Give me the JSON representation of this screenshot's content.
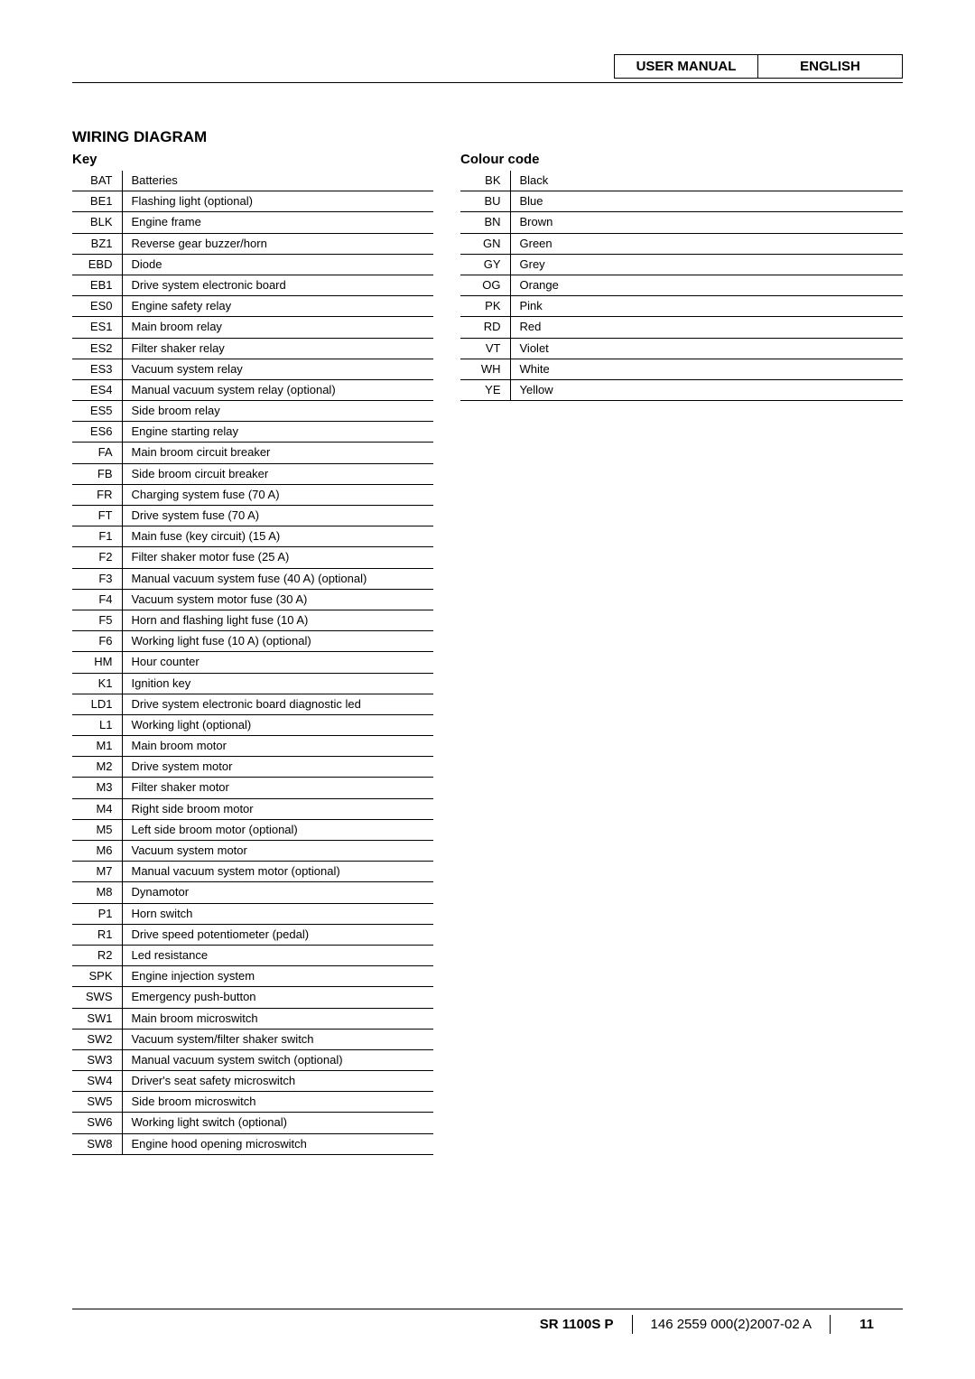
{
  "header": {
    "title": "USER MANUAL",
    "lang": "ENGLISH"
  },
  "section_title": "WIRING DIAGRAM",
  "key_title": "Key",
  "colour_title": "Colour code",
  "key_rows": [
    {
      "code": "BAT",
      "desc": "Batteries"
    },
    {
      "code": "BE1",
      "desc": "Flashing light (optional)"
    },
    {
      "code": "BLK",
      "desc": "Engine frame"
    },
    {
      "code": "BZ1",
      "desc": "Reverse gear buzzer/horn"
    },
    {
      "code": "EBD",
      "desc": "Diode"
    },
    {
      "code": "EB1",
      "desc": "Drive system electronic board"
    },
    {
      "code": "ES0",
      "desc": "Engine safety relay"
    },
    {
      "code": "ES1",
      "desc": "Main broom relay"
    },
    {
      "code": "ES2",
      "desc": "Filter shaker relay"
    },
    {
      "code": "ES3",
      "desc": "Vacuum system relay"
    },
    {
      "code": "ES4",
      "desc": "Manual vacuum system relay (optional)"
    },
    {
      "code": "ES5",
      "desc": "Side broom relay"
    },
    {
      "code": "ES6",
      "desc": "Engine starting relay"
    },
    {
      "code": "FA",
      "desc": "Main broom circuit breaker"
    },
    {
      "code": "FB",
      "desc": "Side broom circuit breaker"
    },
    {
      "code": "FR",
      "desc": "Charging system fuse (70 A)"
    },
    {
      "code": "FT",
      "desc": "Drive system fuse (70 A)"
    },
    {
      "code": "F1",
      "desc": "Main fuse (key circuit) (15 A)"
    },
    {
      "code": "F2",
      "desc": "Filter shaker motor fuse (25 A)"
    },
    {
      "code": "F3",
      "desc": "Manual vacuum system fuse (40 A) (optional)"
    },
    {
      "code": "F4",
      "desc": "Vacuum system motor fuse (30 A)"
    },
    {
      "code": "F5",
      "desc": "Horn and flashing light fuse (10 A)"
    },
    {
      "code": "F6",
      "desc": "Working light fuse (10 A) (optional)"
    },
    {
      "code": "HM",
      "desc": "Hour counter"
    },
    {
      "code": "K1",
      "desc": "Ignition key"
    },
    {
      "code": "LD1",
      "desc": "Drive system electronic board diagnostic led"
    },
    {
      "code": "L1",
      "desc": "Working light (optional)"
    },
    {
      "code": "M1",
      "desc": "Main broom motor"
    },
    {
      "code": "M2",
      "desc": "Drive system motor"
    },
    {
      "code": "M3",
      "desc": "Filter shaker motor"
    },
    {
      "code": "M4",
      "desc": "Right side broom motor"
    },
    {
      "code": "M5",
      "desc": "Left side broom motor (optional)"
    },
    {
      "code": "M6",
      "desc": "Vacuum system motor"
    },
    {
      "code": "M7",
      "desc": "Manual vacuum system motor (optional)"
    },
    {
      "code": "M8",
      "desc": "Dynamotor"
    },
    {
      "code": "P1",
      "desc": "Horn switch"
    },
    {
      "code": "R1",
      "desc": "Drive speed potentiometer (pedal)"
    },
    {
      "code": "R2",
      "desc": "Led resistance"
    },
    {
      "code": "SPK",
      "desc": "Engine injection system"
    },
    {
      "code": "SWS",
      "desc": "Emergency push-button"
    },
    {
      "code": "SW1",
      "desc": "Main broom microswitch"
    },
    {
      "code": "SW2",
      "desc": "Vacuum system/filter shaker switch"
    },
    {
      "code": "SW3",
      "desc": "Manual vacuum system switch (optional)"
    },
    {
      "code": "SW4",
      "desc": "Driver's seat safety microswitch"
    },
    {
      "code": "SW5",
      "desc": "Side broom microswitch"
    },
    {
      "code": "SW6",
      "desc": "Working light switch (optional)"
    },
    {
      "code": "SW8",
      "desc": "Engine hood opening microswitch"
    }
  ],
  "colour_rows": [
    {
      "code": "BK",
      "desc": "Black"
    },
    {
      "code": "BU",
      "desc": "Blue"
    },
    {
      "code": "BN",
      "desc": "Brown"
    },
    {
      "code": "GN",
      "desc": "Green"
    },
    {
      "code": "GY",
      "desc": "Grey"
    },
    {
      "code": "OG",
      "desc": "Orange"
    },
    {
      "code": "PK",
      "desc": "Pink"
    },
    {
      "code": "RD",
      "desc": "Red"
    },
    {
      "code": "VT",
      "desc": "Violet"
    },
    {
      "code": "WH",
      "desc": "White"
    },
    {
      "code": "YE",
      "desc": "Yellow"
    }
  ],
  "footer": {
    "model": "SR 1100S P",
    "docnum": "146 2559 000(2)2007-02 A",
    "page": "11"
  }
}
